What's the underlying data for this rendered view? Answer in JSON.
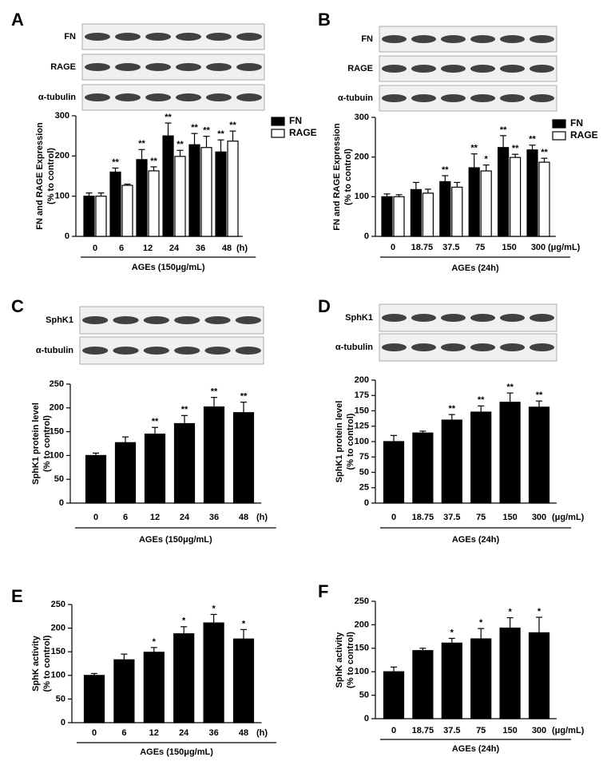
{
  "chart_data": [
    {
      "type": "bar",
      "panel": "A",
      "blots": [
        "FN",
        "RAGE",
        "α-tubulin"
      ],
      "categories": [
        "0",
        "6",
        "12",
        "24",
        "36",
        "48"
      ],
      "x_unit": "(h)",
      "xlabel": "AGEs (150μg/mL)",
      "ylabel": [
        "FN and RAGE Expression",
        "(% to control)"
      ],
      "ylim": [
        0,
        300
      ],
      "yticks": [
        0,
        100,
        200,
        300
      ],
      "legend": "upper right",
      "series": [
        {
          "name": "FN",
          "color": "#000000",
          "values": [
            100,
            160,
            191,
            250,
            228,
            210
          ],
          "errors": [
            8,
            10,
            25,
            32,
            28,
            30
          ],
          "annotations": [
            null,
            "**",
            "**",
            "**",
            "**",
            "**"
          ]
        },
        {
          "name": "RAGE",
          "color": "#ffffff",
          "values": [
            100,
            127,
            163,
            199,
            221,
            237
          ],
          "errors": [
            8,
            3,
            10,
            15,
            28,
            25
          ],
          "annotations": [
            null,
            null,
            "**",
            "**",
            "**",
            "**"
          ]
        }
      ]
    },
    {
      "type": "bar",
      "panel": "B",
      "blots": [
        "FN",
        "RAGE",
        "α-tubuin"
      ],
      "categories": [
        "0",
        "18.75",
        "37.5",
        "75",
        "150",
        "300"
      ],
      "x_unit": "(μg/mL)",
      "xlabel": "AGEs (24h)",
      "ylabel": [
        "FN and RAGE Expression",
        "(% to control)"
      ],
      "ylim": [
        0,
        300
      ],
      "yticks": [
        0,
        100,
        200,
        300
      ],
      "legend": "upper right",
      "series": [
        {
          "name": "FN",
          "color": "#000000",
          "values": [
            100,
            118,
            138,
            173,
            224,
            218
          ],
          "errors": [
            7,
            18,
            15,
            35,
            30,
            12
          ],
          "annotations": [
            null,
            null,
            "**",
            "**",
            "**",
            "**"
          ]
        },
        {
          "name": "RAGE",
          "color": "#ffffff",
          "values": [
            100,
            109,
            124,
            165,
            199,
            187
          ],
          "errors": [
            5,
            10,
            12,
            15,
            8,
            10
          ],
          "annotations": [
            null,
            null,
            null,
            "*",
            "**",
            "**"
          ]
        }
      ]
    },
    {
      "type": "bar",
      "panel": "C",
      "blots": [
        "SphK1",
        "α-tubulin"
      ],
      "categories": [
        "0",
        "6",
        "12",
        "24",
        "36",
        "48"
      ],
      "x_unit": "(h)",
      "xlabel": "AGEs (150μg/mL)",
      "ylabel": [
        "SphK1 protein level",
        "(% to control)"
      ],
      "ylim": [
        0,
        250
      ],
      "yticks": [
        0,
        50,
        100,
        150,
        200,
        250
      ],
      "color": "#000000",
      "values": [
        100,
        127,
        145,
        167,
        202,
        190
      ],
      "errors": [
        5,
        12,
        14,
        17,
        20,
        22
      ],
      "annotations": [
        null,
        null,
        "**",
        "**",
        "**",
        "**"
      ]
    },
    {
      "type": "bar",
      "panel": "D",
      "blots": [
        "SphK1",
        "α-tubulin"
      ],
      "categories": [
        "0",
        "18.75",
        "37.5",
        "75",
        "150",
        "300"
      ],
      "x_unit": "(μg/mL)",
      "xlabel": "AGEs (24h)",
      "ylabel": [
        "SphK1 protein level",
        "(% to control)"
      ],
      "ylim": [
        0,
        200
      ],
      "yticks": [
        0,
        25,
        50,
        75,
        100,
        125,
        150,
        175,
        200
      ],
      "color": "#000000",
      "values": [
        100,
        114,
        135,
        148,
        164,
        156
      ],
      "errors": [
        10,
        3,
        9,
        10,
        15,
        10
      ],
      "annotations": [
        null,
        null,
        "**",
        "**",
        "**",
        "**"
      ]
    },
    {
      "type": "bar",
      "panel": "E",
      "categories": [
        "0",
        "6",
        "12",
        "24",
        "36",
        "48"
      ],
      "x_unit": "(h)",
      "xlabel": "AGEs (150μg/mL)",
      "ylabel": [
        "SphK activity",
        "(% to control)"
      ],
      "ylim": [
        0,
        250
      ],
      "yticks": [
        0,
        50,
        100,
        150,
        200,
        250
      ],
      "color": "#000000",
      "values": [
        100,
        133,
        149,
        188,
        211,
        177
      ],
      "errors": [
        4,
        12,
        10,
        15,
        18,
        20
      ],
      "annotations": [
        null,
        null,
        "*",
        "*",
        "*",
        "*"
      ]
    },
    {
      "type": "bar",
      "panel": "F",
      "categories": [
        "0",
        "18.75",
        "37.5",
        "75",
        "150",
        "300"
      ],
      "x_unit": "(μg/mL)",
      "xlabel": "AGEs (24h)",
      "ylabel": [
        "SphK activity",
        "(% to control)"
      ],
      "ylim": [
        0,
        250
      ],
      "yticks": [
        0,
        50,
        100,
        150,
        200,
        250
      ],
      "color": "#000000",
      "values": [
        100,
        145,
        161,
        170,
        193,
        183
      ],
      "errors": [
        10,
        5,
        10,
        22,
        22,
        33
      ],
      "annotations": [
        null,
        null,
        "*",
        "*",
        "*",
        "*"
      ]
    }
  ]
}
